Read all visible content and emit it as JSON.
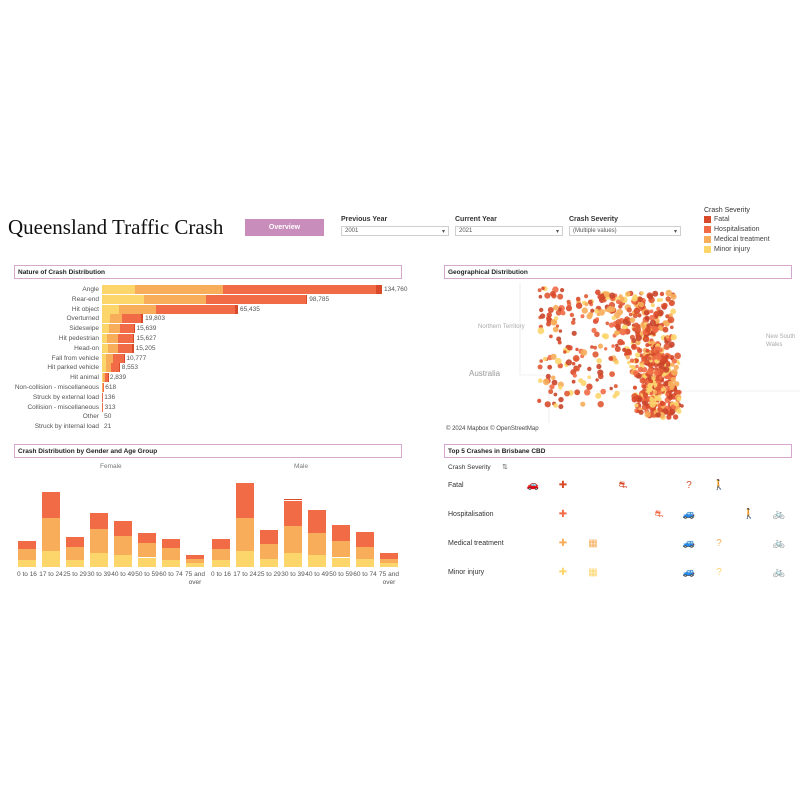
{
  "title": "Queensland Traffic Crash",
  "overview_button": "Overview",
  "filters": {
    "previous_year": {
      "label": "Previous Year",
      "value": "2001"
    },
    "current_year": {
      "label": "Current Year",
      "value": "2021"
    },
    "crash_severity": {
      "label": "Crash Severity",
      "value": "(Multiple values)"
    }
  },
  "legend": {
    "title": "Crash Severity",
    "items": [
      {
        "label": "Fatal",
        "color": "#d94a2b"
      },
      {
        "label": "Hospitalisation",
        "color": "#f26b47"
      },
      {
        "label": "Medical treatment",
        "color": "#f7ad5a"
      },
      {
        "label": "Minor injury",
        "color": "#fcd56b"
      }
    ]
  },
  "panels": {
    "nature": "Nature of Crash Distribution",
    "geo": "Geographical Distribution",
    "gender_age": "Crash Distribution by Gender and Age Group",
    "top5": "Top 5 Crashes in Brisbane CBD"
  },
  "map": {
    "labels": {
      "nt": "Northern Territory",
      "australia": "Australia",
      "nsw": "New South Wales"
    },
    "copyright": "© 2024 Mapbox © OpenStreetMap"
  },
  "top5": {
    "header": "Crash Severity",
    "sort_icon": "sort-icon",
    "rows": [
      {
        "label": "Fatal"
      },
      {
        "label": "Hospitalisation"
      },
      {
        "label": "Medical treatment"
      },
      {
        "label": "Minor injury"
      }
    ]
  },
  "chart_data": [
    {
      "type": "bar",
      "orientation": "horizontal",
      "stacked": true,
      "categories": [
        "Angle",
        "Rear-end",
        "Hit object",
        "Overturned",
        "Sideswipe",
        "Hit pedestrian",
        "Head-on",
        "Fall from vehicle",
        "Hit parked vehicle",
        "Hit animal",
        "Non-collision - miscellaneous",
        "Struck by external load",
        "Collision - miscellaneous",
        "Other",
        "Struck by internal load"
      ],
      "totals": [
        "134,760",
        "98,785",
        "65,435",
        "19,803",
        "15,639",
        "15,627",
        "15,205",
        "10,777",
        "8,553",
        "2,839",
        "618",
        "136",
        "313",
        "50",
        "21"
      ],
      "series": [
        {
          "name": "Minor injury",
          "values": [
            16000,
            20000,
            8000,
            4000,
            3500,
            2500,
            3000,
            2000,
            2000,
            700,
            150,
            40,
            80,
            15,
            5
          ]
        },
        {
          "name": "Medical treatment",
          "values": [
            42000,
            30000,
            18000,
            5500,
            5000,
            5000,
            4500,
            3500,
            2500,
            900,
            200,
            40,
            100,
            15,
            6
          ]
        },
        {
          "name": "Hospitalisation",
          "values": [
            74000,
            48000,
            38000,
            9500,
            7000,
            7500,
            7000,
            5000,
            3800,
            1200,
            260,
            56,
            133,
            20,
            10
          ]
        },
        {
          "name": "Fatal",
          "values": [
            2760,
            785,
            1435,
            803,
            139,
            627,
            705,
            277,
            253,
            39,
            8,
            0,
            0,
            0,
            0
          ]
        }
      ]
    },
    {
      "type": "bar",
      "stacked": true,
      "groups": [
        "Female",
        "Male"
      ],
      "categories": [
        "0 to 16",
        "17 to 24",
        "25 to 29",
        "30 to 39",
        "40 to 49",
        "50 to 59",
        "60 to 74",
        "75 and over"
      ],
      "series": [
        {
          "name": "Minor injury",
          "female": [
            5,
            12,
            5,
            10,
            9,
            7,
            5,
            3
          ],
          "male": [
            5,
            12,
            6,
            10,
            9,
            7,
            6,
            3
          ]
        },
        {
          "name": "Medical treatment",
          "female": [
            8,
            24,
            10,
            18,
            14,
            11,
            9,
            3
          ],
          "male": [
            8,
            24,
            11,
            20,
            16,
            12,
            9,
            3
          ]
        },
        {
          "name": "Hospitalisation",
          "female": [
            6,
            19,
            7,
            12,
            11,
            7,
            7,
            3
          ],
          "male": [
            8,
            26,
            10,
            19,
            17,
            12,
            11,
            4
          ]
        },
        {
          "name": "Fatal",
          "female": [
            0,
            0,
            0,
            0,
            0,
            0,
            0,
            0
          ],
          "male": [
            0,
            0,
            0,
            1,
            0,
            0,
            0,
            0
          ]
        }
      ],
      "ylim": [
        0,
        70
      ]
    }
  ]
}
